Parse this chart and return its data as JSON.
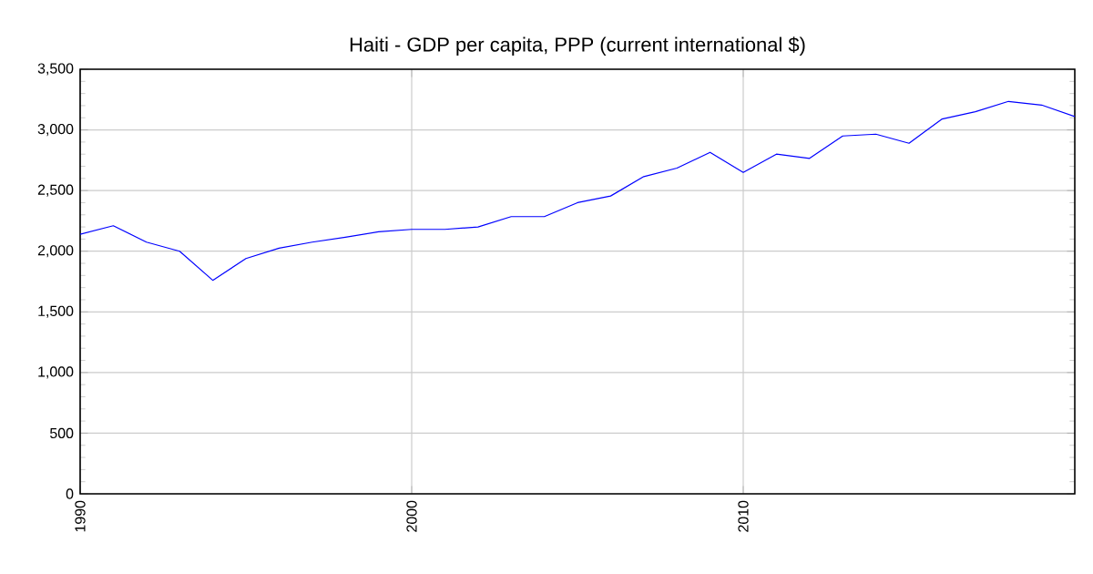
{
  "chart_data": {
    "type": "line",
    "title": "Haiti - GDP per capita, PPP (current international $)",
    "x": [
      1990,
      1991,
      1992,
      1993,
      1994,
      1995,
      1996,
      1997,
      1998,
      1999,
      2000,
      2001,
      2002,
      2003,
      2004,
      2005,
      2006,
      2007,
      2008,
      2009,
      2010,
      2011,
      2012,
      2013,
      2014,
      2015,
      2016,
      2017,
      2018,
      2019,
      2020
    ],
    "series": [
      {
        "color": "#0000ff",
        "values": [
          2140,
          2210,
          2075,
          2000,
          1760,
          1940,
          2025,
          2075,
          2115,
          2160,
          2180,
          2180,
          2200,
          2285,
          2285,
          2400,
          2455,
          2615,
          2685,
          2815,
          2650,
          2800,
          2765,
          2950,
          2965,
          2890,
          3090,
          3150,
          3235,
          3205,
          3110
        ]
      }
    ],
    "xlim": [
      1990,
      2020
    ],
    "ylim": [
      0,
      3500
    ],
    "xticks": [
      1990,
      2000,
      2010
    ],
    "yticks": [
      0,
      {
        "value": 500,
        "label": "500"
      },
      {
        "value": 1000,
        "label": "1,000"
      },
      {
        "value": 1500,
        "label": "1,500"
      },
      {
        "value": 2000,
        "label": "2,000"
      },
      {
        "value": 2500,
        "label": "2,500"
      },
      {
        "value": 3000,
        "label": "3,000"
      },
      {
        "value": 3500,
        "label": "3,500"
      }
    ],
    "grid": true,
    "marker": "none",
    "line_style": "solid"
  }
}
